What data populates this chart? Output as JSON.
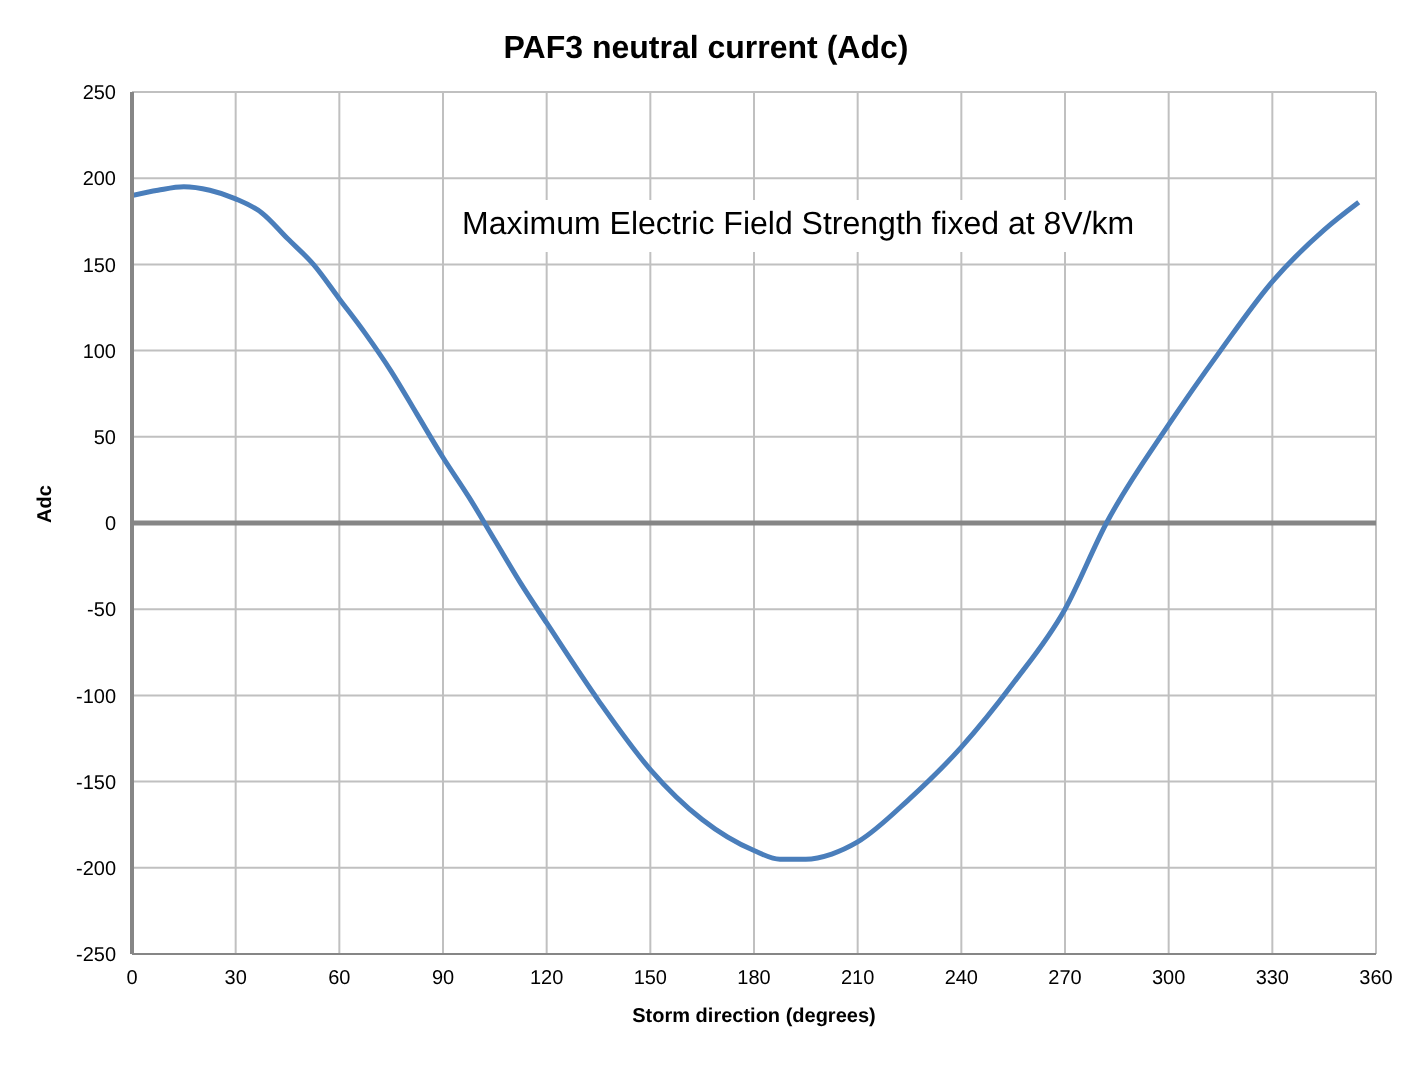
{
  "chart_data": {
    "type": "line",
    "title": "PAF3 neutral current (Adc)",
    "xlabel": "Storm direction (degrees)",
    "ylabel": "Adc",
    "annotations": [
      "Maximum Electric Field Strength fixed at 8V/km"
    ],
    "x": [
      0,
      7.5,
      15,
      22.5,
      30,
      37.5,
      45,
      52.5,
      60,
      67.5,
      75,
      82.5,
      90,
      97.5,
      105,
      112.5,
      120,
      135,
      150,
      165,
      180,
      187.5,
      195,
      202.5,
      210,
      225,
      240,
      255,
      270,
      282,
      300,
      315,
      330,
      345,
      355
    ],
    "series": [
      {
        "color": "#4a7ebb",
        "values": [
          190,
          193,
          195,
          193,
          188,
          180,
          165,
          150,
          130,
          110,
          88,
          63,
          38,
          15,
          -10,
          -35,
          -58,
          -103,
          -143,
          -172,
          -190,
          -195,
          -195,
          -192,
          -185,
          -160,
          -130,
          -93,
          -50,
          0,
          57,
          100,
          140,
          170,
          186
        ]
      }
    ],
    "xlim": [
      0,
      360
    ],
    "xticks": [
      0,
      30,
      60,
      90,
      120,
      150,
      180,
      210,
      240,
      270,
      300,
      330,
      360
    ],
    "ylim": [
      -250,
      250
    ],
    "yticks": [
      -250,
      -200,
      -150,
      -100,
      -50,
      0,
      50,
      100,
      150,
      200,
      250
    ],
    "grid": true,
    "legend": false,
    "marker": "none",
    "line_style": "solid",
    "ref_lines": [
      {
        "axis": "y",
        "value": 0,
        "color": "#868686"
      }
    ]
  }
}
